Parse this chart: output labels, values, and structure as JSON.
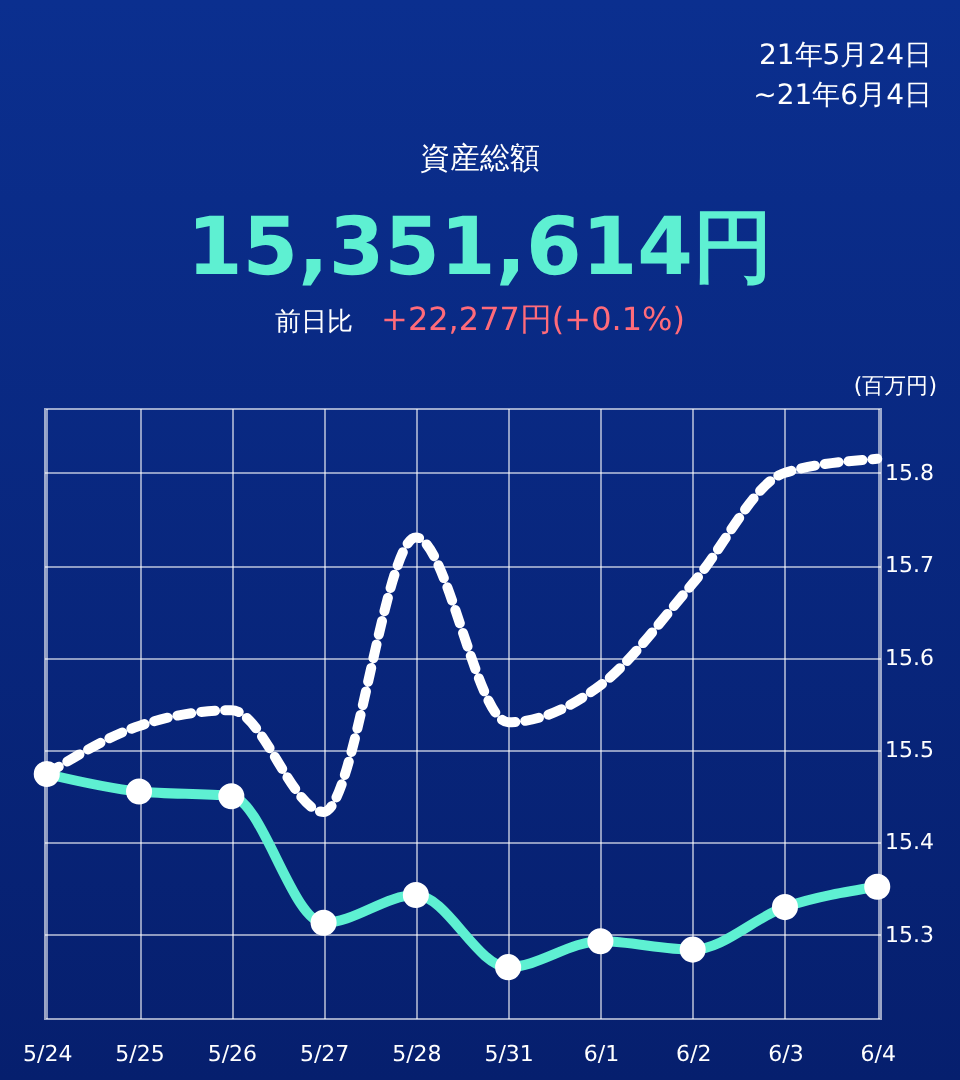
{
  "chart_data": {
    "type": "line",
    "title": "資産総額",
    "subtitle": "15,351,614円",
    "annotations": [
      "21年5月24日",
      "~21年6月4日",
      "前日比",
      "+22,277円(+0.1%)"
    ],
    "ylabel": "(百万円)",
    "categories": [
      "5/24",
      "5/25",
      "5/26",
      "5/27",
      "5/28",
      "5/31",
      "6/1",
      "6/2",
      "6/3",
      "6/4"
    ],
    "series": [
      {
        "color": "#5ef0d2",
        "line_style": "solid",
        "marker": "circle",
        "values": [
          15.474,
          15.455,
          15.45,
          15.313,
          15.343,
          15.265,
          15.293,
          15.284,
          15.33,
          15.352
        ]
      },
      {
        "color": "#ffffff",
        "line_style": "dashed",
        "marker": "none",
        "values": [
          15.474,
          15.526,
          15.543,
          15.433,
          15.73,
          15.53,
          15.57,
          15.68,
          15.8,
          15.815
        ]
      }
    ],
    "ylim": [
      15.21,
      15.87
    ],
    "yticks": [
      15.3,
      15.4,
      15.5,
      15.6,
      15.7,
      15.8
    ],
    "grid": true
  }
}
